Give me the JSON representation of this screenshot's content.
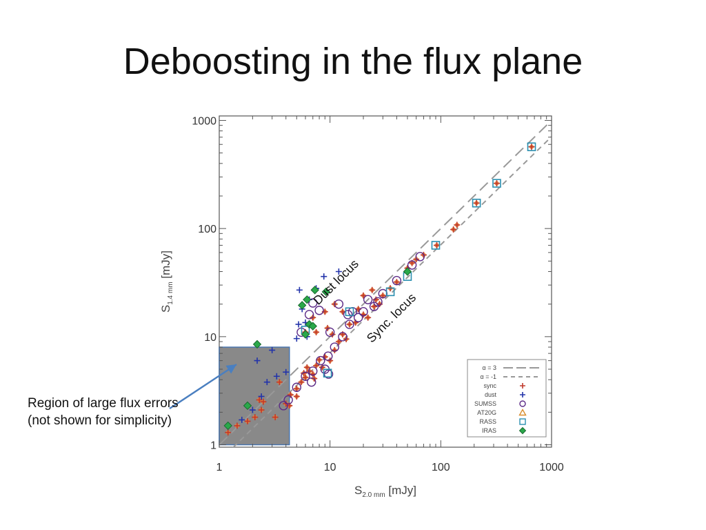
{
  "slide": {
    "title": "Deboosting in the flux plane",
    "callout": "Region of large flux errors (not shown for simplicity)"
  },
  "colors": {
    "sync": "#c0392b",
    "dust": "#2233aa",
    "sumss": "#5b2a86",
    "at20g": "#d98c2b",
    "rass": "#2a8fb0",
    "iras": "#2aa84a",
    "fill_sync": "#e8833a",
    "region": "#808080",
    "guide": "#999999",
    "arrow": "#4a7fc0"
  },
  "chart_data": {
    "type": "scatter",
    "xlabel": {
      "main": "S",
      "sub": "2.0 mm",
      "unit": "[mJy]"
    },
    "ylabel": {
      "main": "S",
      "sub": "1.4 mm",
      "unit": "[mJy]"
    },
    "x_scale": "log",
    "y_scale": "log",
    "xlim": [
      1,
      1000
    ],
    "ylim": [
      0.95,
      1100
    ],
    "x_ticks": [
      1,
      10,
      100,
      1000
    ],
    "x_tick_labels": [
      "1",
      "10",
      "100",
      "1000"
    ],
    "y_ticks": [
      1,
      10,
      100,
      1000
    ],
    "y_tick_labels": [
      "1",
      "10",
      "100",
      "1000"
    ],
    "grid": false,
    "lines": [
      {
        "label": "α = 3",
        "slope": 1.0,
        "intercept_log": 0.0,
        "style": "long-dash"
      },
      {
        "label": "α = -1",
        "slope": 1.0,
        "intercept_log": -0.15,
        "style": "short-dash"
      }
    ],
    "annotations": [
      {
        "text": "Dust locus",
        "x": 12,
        "y": 30
      },
      {
        "text": "Sync. locus",
        "x": 38,
        "y": 14
      }
    ],
    "region": {
      "x": [
        1,
        4.3
      ],
      "y": [
        1,
        8
      ]
    },
    "legend_position": "bottom-right",
    "legend": [
      {
        "label": "α = 3",
        "marker": "long-dash"
      },
      {
        "label": "α = -1",
        "marker": "short-dash"
      },
      {
        "label": "sync",
        "marker": "plus-red"
      },
      {
        "label": "dust",
        "marker": "plus-blue"
      },
      {
        "label": "SUMSS",
        "marker": "circle"
      },
      {
        "label": "AT20G",
        "marker": "triangle"
      },
      {
        "label": "RASS",
        "marker": "square"
      },
      {
        "label": "IRAS",
        "marker": "diamond"
      }
    ],
    "series": [
      {
        "name": "sync",
        "marker": "plus-red",
        "points": [
          [
            4,
            2.4
          ],
          [
            4.4,
            2.9
          ],
          [
            5,
            3.3
          ],
          [
            5.5,
            3.8
          ],
          [
            6,
            4.2
          ],
          [
            6.5,
            4.8
          ],
          [
            7,
            4.5
          ],
          [
            7.5,
            5.4
          ],
          [
            8,
            6.1
          ],
          [
            5.8,
            4.6
          ],
          [
            6.2,
            5.2
          ],
          [
            7.2,
            4.1
          ],
          [
            8.5,
            5.2
          ],
          [
            9,
            6.5
          ],
          [
            10,
            6
          ],
          [
            11,
            7.5
          ],
          [
            12,
            9
          ],
          [
            13,
            10.5
          ],
          [
            14,
            9.5
          ],
          [
            15,
            13
          ],
          [
            17,
            13.5
          ],
          [
            20,
            16
          ],
          [
            22,
            15
          ],
          [
            25,
            19
          ],
          [
            28,
            20
          ],
          [
            30,
            24
          ],
          [
            35,
            28
          ],
          [
            40,
            32
          ],
          [
            50,
            43
          ],
          [
            55,
            48
          ],
          [
            60,
            52
          ],
          [
            70,
            57
          ],
          [
            92,
            70
          ],
          [
            130,
            98
          ],
          [
            140,
            108
          ],
          [
            210,
            172
          ],
          [
            320,
            262
          ],
          [
            660,
            570
          ],
          [
            7,
            15
          ],
          [
            9,
            17
          ],
          [
            11,
            20
          ],
          [
            13,
            17
          ],
          [
            20,
            24
          ],
          [
            24,
            27
          ],
          [
            18,
            18
          ],
          [
            26,
            22
          ],
          [
            6,
            11
          ],
          [
            7.5,
            11
          ],
          [
            9.5,
            12
          ],
          [
            10.5,
            10.5
          ],
          [
            1.2,
            1.3
          ],
          [
            1.45,
            1.5
          ],
          [
            1.8,
            1.65
          ],
          [
            2.1,
            1.8
          ],
          [
            2.4,
            2.1
          ],
          [
            3.2,
            1.8
          ],
          [
            2.3,
            2.6
          ],
          [
            3.5,
            3.8
          ],
          [
            2.5,
            2.5
          ],
          [
            4.3,
            2.3
          ],
          [
            5,
            2.8
          ]
        ]
      },
      {
        "name": "dust",
        "marker": "plus-blue",
        "points": [
          [
            1.2,
            1.5
          ],
          [
            1.6,
            1.7
          ],
          [
            2,
            2.1
          ],
          [
            2.4,
            2.8
          ],
          [
            2.2,
            6
          ],
          [
            3,
            7.5
          ],
          [
            2.7,
            3.8
          ],
          [
            3.3,
            4.3
          ],
          [
            4,
            4.7
          ],
          [
            5.2,
            13
          ],
          [
            5.6,
            18
          ],
          [
            5.3,
            27
          ],
          [
            6.5,
            22
          ],
          [
            7.5,
            28
          ],
          [
            8.8,
            36
          ],
          [
            12,
            40
          ],
          [
            5,
            9.6
          ],
          [
            6,
            13.5
          ],
          [
            6.2,
            10
          ]
        ]
      },
      {
        "name": "SUMSS",
        "marker": "circle",
        "points": [
          [
            4.2,
            2.6
          ],
          [
            5,
            3.4
          ],
          [
            6,
            4.3
          ],
          [
            7,
            4.8
          ],
          [
            8.2,
            6
          ],
          [
            9.6,
            6.6
          ],
          [
            11,
            8
          ],
          [
            13,
            10
          ],
          [
            15,
            13
          ],
          [
            18,
            15
          ],
          [
            20,
            17
          ],
          [
            25,
            19
          ],
          [
            30,
            25
          ],
          [
            40,
            33
          ],
          [
            55,
            46
          ],
          [
            65,
            55
          ],
          [
            6.5,
            16
          ],
          [
            8,
            17.5
          ],
          [
            12,
            20
          ],
          [
            16,
            17
          ],
          [
            22,
            22
          ],
          [
            5.5,
            11
          ],
          [
            7,
            20.5
          ],
          [
            10,
            11
          ],
          [
            14.5,
            16
          ],
          [
            27,
            21
          ],
          [
            3.8,
            2.3
          ],
          [
            6.8,
            3.8
          ],
          [
            9,
            5
          ],
          [
            9.7,
            4.5
          ]
        ]
      },
      {
        "name": "RASS",
        "marker": "square",
        "points": [
          [
            6,
            11.5
          ],
          [
            9.5,
            4.6
          ],
          [
            15,
            17
          ],
          [
            35,
            26
          ],
          [
            50,
            36
          ],
          [
            90,
            70
          ],
          [
            210,
            172
          ],
          [
            320,
            262
          ],
          [
            660,
            570
          ]
        ]
      },
      {
        "name": "IRAS",
        "marker": "diamond",
        "points": [
          [
            2.2,
            8.5
          ],
          [
            1.8,
            2.3
          ],
          [
            1.2,
            1.5
          ],
          [
            5.6,
            19.5
          ],
          [
            6.2,
            22
          ],
          [
            7.3,
            27
          ],
          [
            9.2,
            26
          ],
          [
            6.5,
            13
          ],
          [
            7,
            12.5
          ],
          [
            50,
            40
          ],
          [
            6,
            10.5
          ]
        ]
      }
    ]
  }
}
